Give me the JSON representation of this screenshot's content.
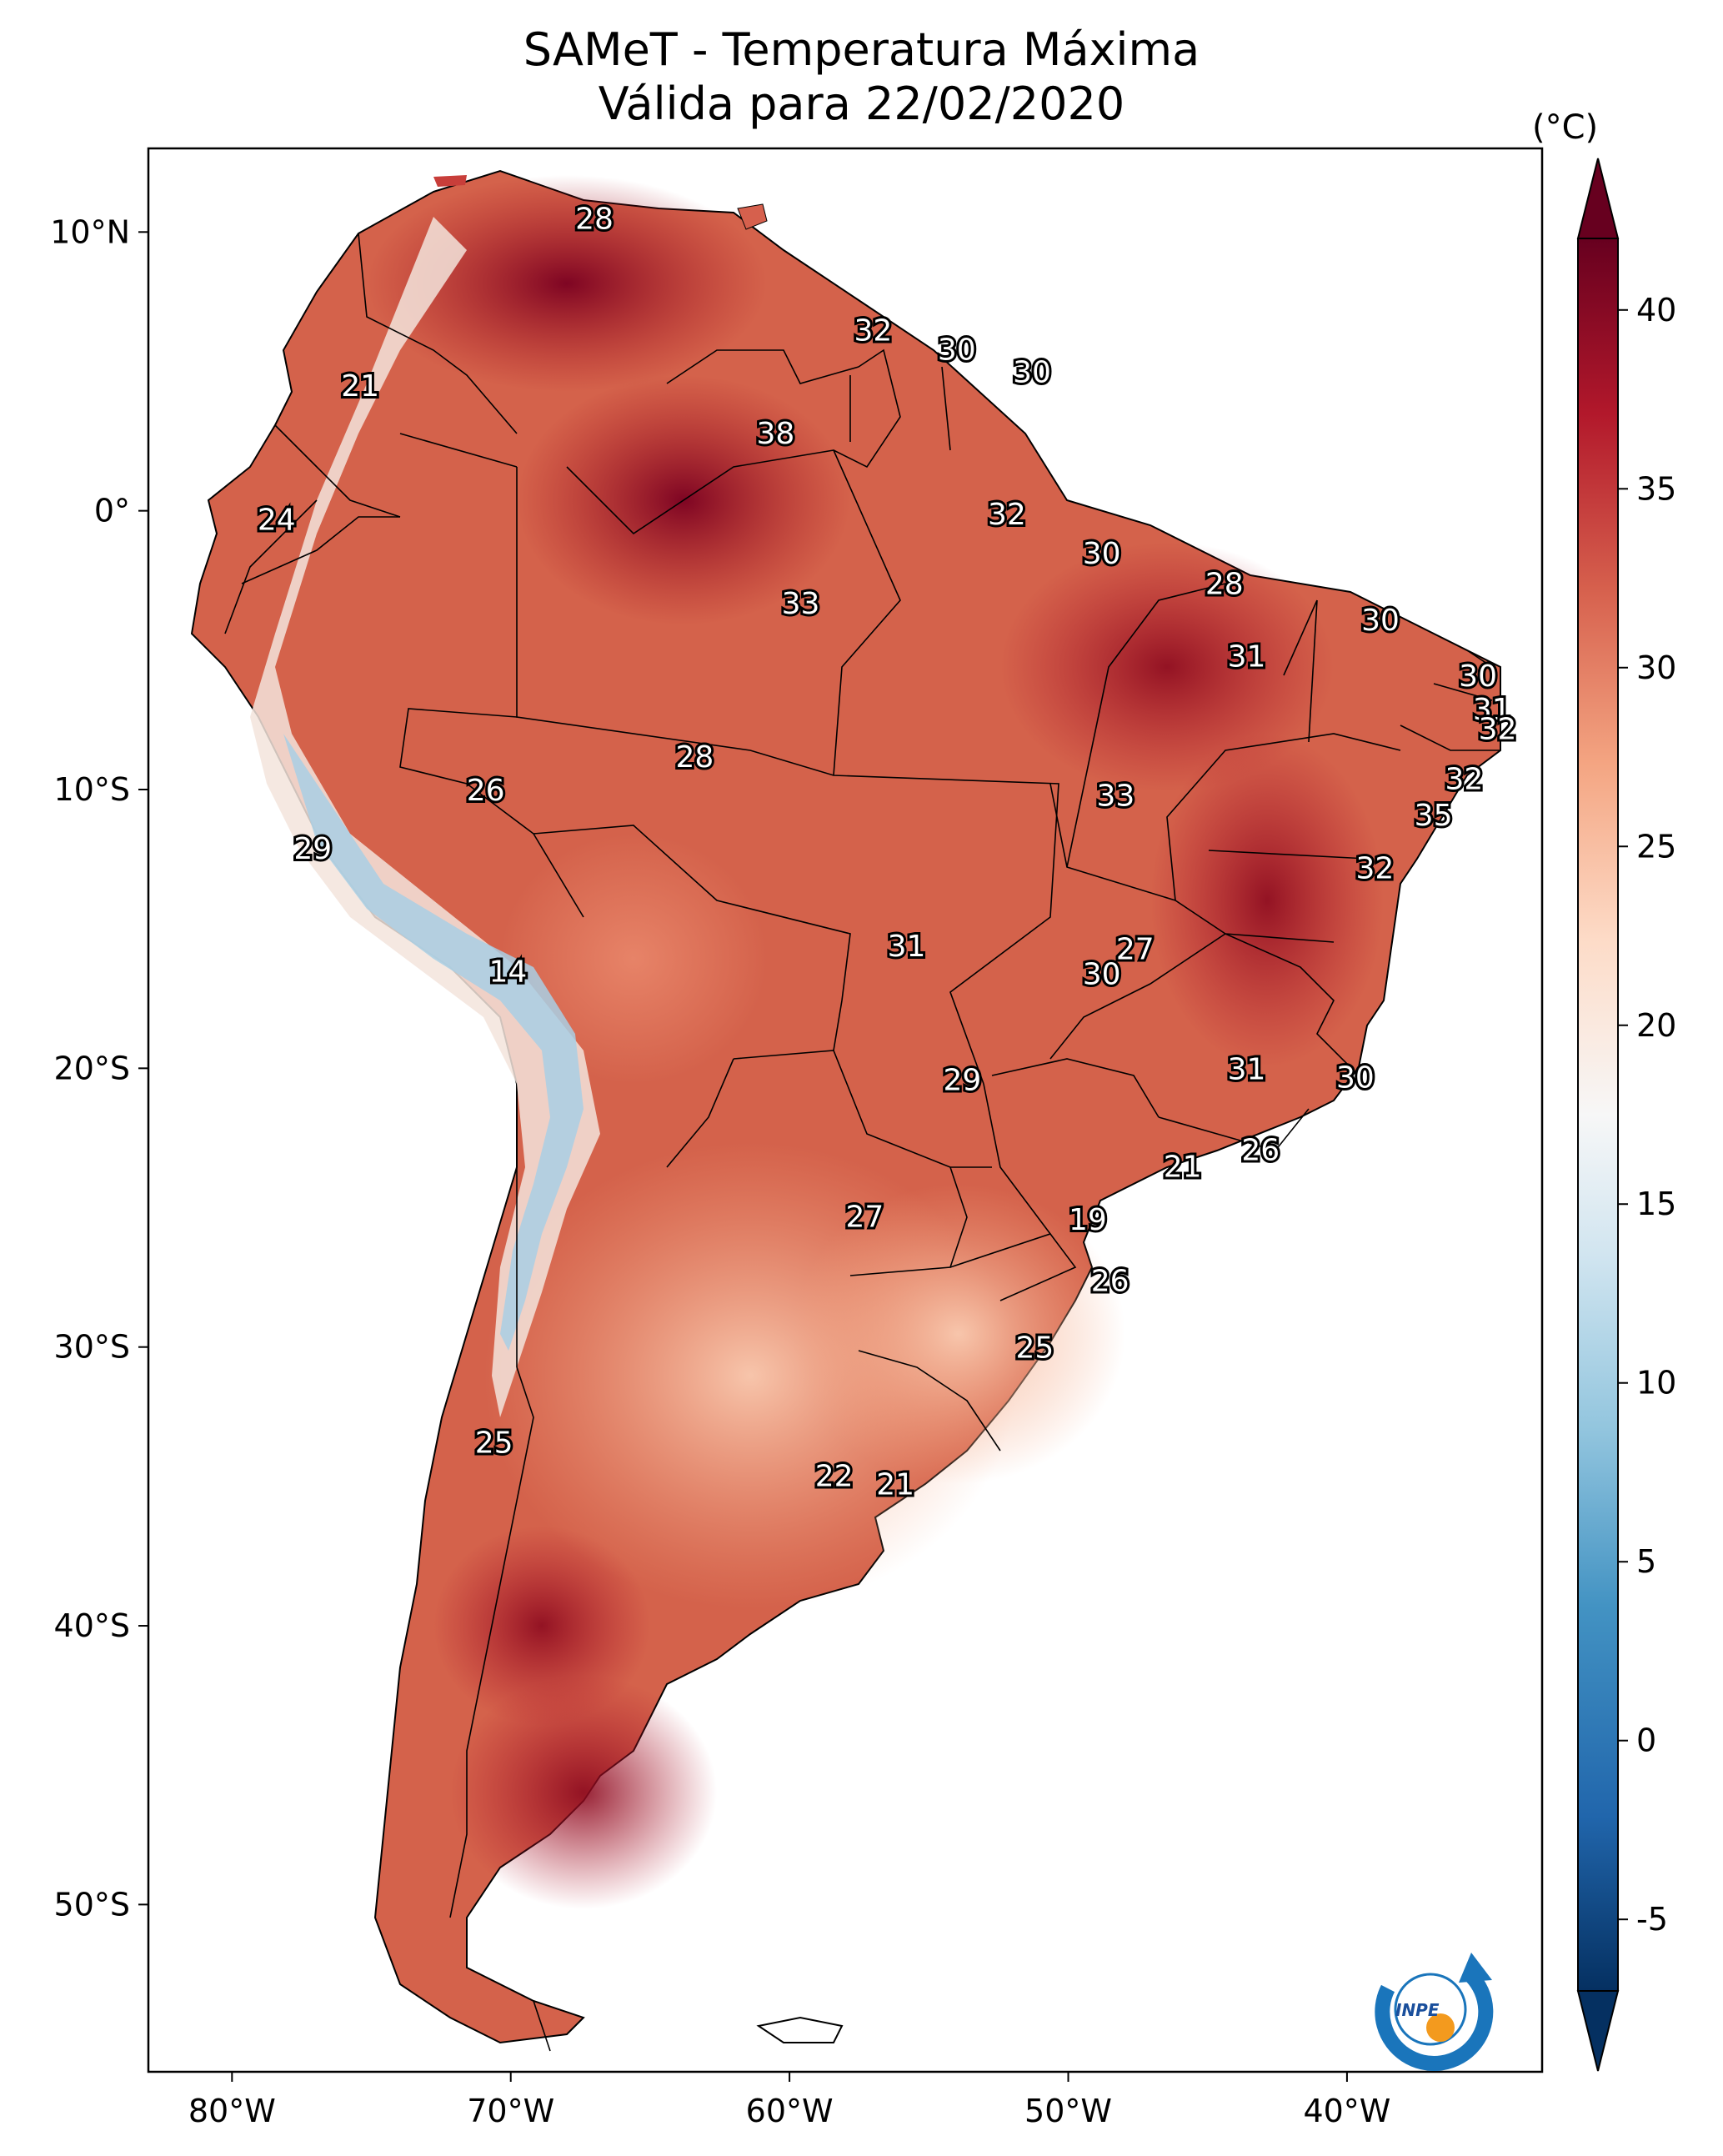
{
  "title": {
    "line1": "SAMeT - Temperatura Máxima",
    "line2": "Válida para 22/02/2020"
  },
  "map": {
    "extent": {
      "lon_min": -83,
      "lon_max": -33,
      "lat_min": -56,
      "lat_max": 13
    },
    "lon_ticks": [
      {
        "value": -80,
        "label": "80°W"
      },
      {
        "value": -70,
        "label": "70°W"
      },
      {
        "value": -60,
        "label": "60°W"
      },
      {
        "value": -50,
        "label": "50°W"
      },
      {
        "value": -40,
        "label": "40°W"
      }
    ],
    "lat_ticks": [
      {
        "value": 10,
        "label": "10°N"
      },
      {
        "value": 0,
        "label": "0°"
      },
      {
        "value": -10,
        "label": "10°S"
      },
      {
        "value": -20,
        "label": "20°S"
      },
      {
        "value": -30,
        "label": "30°S"
      },
      {
        "value": -40,
        "label": "40°S"
      },
      {
        "value": -50,
        "label": "50°S"
      }
    ],
    "station_values": [
      {
        "lon": -67,
        "lat": 10.5,
        "value": "28"
      },
      {
        "lon": -57,
        "lat": 6.5,
        "value": "32"
      },
      {
        "lon": -54,
        "lat": 5.8,
        "value": "30"
      },
      {
        "lon": -51.3,
        "lat": 5.0,
        "value": "30"
      },
      {
        "lon": -75.4,
        "lat": 4.5,
        "value": "21"
      },
      {
        "lon": -60.5,
        "lat": 2.8,
        "value": "38"
      },
      {
        "lon": -78.4,
        "lat": -0.3,
        "value": "24"
      },
      {
        "lon": -52.2,
        "lat": -0.1,
        "value": "32"
      },
      {
        "lon": -48.8,
        "lat": -1.5,
        "value": "30"
      },
      {
        "lon": -59.6,
        "lat": -3.3,
        "value": "33"
      },
      {
        "lon": -44.4,
        "lat": -2.6,
        "value": "28"
      },
      {
        "lon": -38.8,
        "lat": -3.9,
        "value": "30"
      },
      {
        "lon": -43.6,
        "lat": -5.2,
        "value": "31"
      },
      {
        "lon": -35.3,
        "lat": -5.9,
        "value": "30"
      },
      {
        "lon": -34.8,
        "lat": -7.1,
        "value": "31"
      },
      {
        "lon": -34.6,
        "lat": -7.8,
        "value": "32"
      },
      {
        "lon": -63.4,
        "lat": -8.8,
        "value": "28"
      },
      {
        "lon": -70.9,
        "lat": -10.0,
        "value": "26"
      },
      {
        "lon": -48.3,
        "lat": -10.2,
        "value": "33"
      },
      {
        "lon": -35.8,
        "lat": -9.6,
        "value": "32"
      },
      {
        "lon": -36.9,
        "lat": -10.9,
        "value": "35"
      },
      {
        "lon": -77.1,
        "lat": -12.1,
        "value": "29"
      },
      {
        "lon": -39.0,
        "lat": -12.8,
        "value": "32"
      },
      {
        "lon": -55.8,
        "lat": -15.6,
        "value": "31"
      },
      {
        "lon": -47.6,
        "lat": -15.7,
        "value": "27"
      },
      {
        "lon": -48.8,
        "lat": -16.6,
        "value": "30"
      },
      {
        "lon": -70.1,
        "lat": -16.5,
        "value": "14"
      },
      {
        "lon": -53.8,
        "lat": -20.4,
        "value": "29"
      },
      {
        "lon": -43.6,
        "lat": -20.0,
        "value": "31"
      },
      {
        "lon": -39.7,
        "lat": -20.3,
        "value": "30"
      },
      {
        "lon": -43.1,
        "lat": -22.9,
        "value": "26"
      },
      {
        "lon": -45.9,
        "lat": -23.5,
        "value": "21"
      },
      {
        "lon": -57.3,
        "lat": -25.3,
        "value": "27"
      },
      {
        "lon": -49.3,
        "lat": -25.4,
        "value": "19"
      },
      {
        "lon": -48.5,
        "lat": -27.6,
        "value": "26"
      },
      {
        "lon": -51.2,
        "lat": -30.0,
        "value": "25"
      },
      {
        "lon": -70.6,
        "lat": -33.4,
        "value": "25"
      },
      {
        "lon": -58.4,
        "lat": -34.6,
        "value": "22"
      },
      {
        "lon": -56.2,
        "lat": -34.9,
        "value": "21"
      }
    ],
    "logo_text": "INPE"
  },
  "colorbar": {
    "unit": "(°C)",
    "min": -7,
    "max": 42,
    "ticks": [
      {
        "value": 40,
        "label": "40"
      },
      {
        "value": 35,
        "label": "35"
      },
      {
        "value": 30,
        "label": "30"
      },
      {
        "value": 25,
        "label": "25"
      },
      {
        "value": 20,
        "label": "20"
      },
      {
        "value": 15,
        "label": "15"
      },
      {
        "value": 10,
        "label": "10"
      },
      {
        "value": 5,
        "label": "5"
      },
      {
        "value": 0,
        "label": "0"
      },
      {
        "value": -5,
        "label": "-5"
      }
    ],
    "colors": [
      "#053061",
      "#2166ac",
      "#4393c3",
      "#92c5de",
      "#d1e5f0",
      "#f7f7f7",
      "#fddbc7",
      "#f4a582",
      "#d6604d",
      "#b2182b",
      "#67001f"
    ]
  }
}
